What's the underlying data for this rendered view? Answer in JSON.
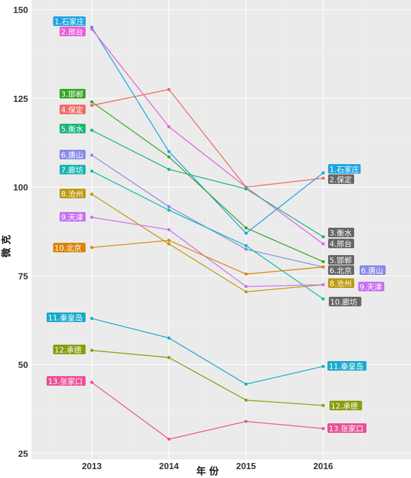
{
  "chart_data": {
    "type": "line",
    "x": [
      "2013",
      "2014",
      "2015",
      "2016"
    ],
    "ylabel": "微 克",
    "xlabel": "年 份",
    "ylim": [
      25,
      150
    ],
    "yticks": [
      "25",
      "50",
      "75",
      "100",
      "125",
      "150"
    ],
    "grid": true,
    "legend": "none (direct labels at both ends)",
    "series": [
      {
        "name": "1.石家庄",
        "color": "#1fa3e0",
        "values": [
          145,
          110,
          87,
          104
        ]
      },
      {
        "name": "2.邢台",
        "color": "#e75fda",
        "values": [
          144.5,
          117,
          100,
          84
        ]
      },
      {
        "name": "3.邯郸",
        "color": "#35a623",
        "values": [
          124,
          108.5,
          88.5,
          79
        ]
      },
      {
        "name": "4.保定",
        "color": "#ed6a5f",
        "values": [
          123,
          127.5,
          100,
          102.5
        ]
      },
      {
        "name": "5.衡水",
        "color": "#13b77a",
        "values": [
          116,
          105,
          99.5,
          86
        ]
      },
      {
        "name": "6.唐山",
        "color": "#8a8ae8",
        "values": [
          109,
          94.5,
          82.5,
          77.5
        ]
      },
      {
        "name": "7.廊坊",
        "color": "#12b8b0",
        "values": [
          104.5,
          93.5,
          83.5,
          68.5
        ]
      },
      {
        "name": "8.沧州",
        "color": "#b99a0c",
        "values": [
          98,
          84,
          70.5,
          72.5
        ]
      },
      {
        "name": "9.天津",
        "color": "#c971f0",
        "values": [
          91.5,
          88,
          72,
          72.5
        ]
      },
      {
        "name": "10.北京",
        "color": "#d9860b",
        "values": [
          83,
          85,
          75.5,
          77.5
        ]
      },
      {
        "name": "11.秦皇岛",
        "color": "#19aacb",
        "values": [
          63,
          57.5,
          44.5,
          49.5
        ]
      },
      {
        "name": "12.承德",
        "color": "#8a9c0e",
        "values": [
          54,
          52,
          40,
          38.5
        ]
      },
      {
        "name": "13.张家口",
        "color": "#ea4f96",
        "values": [
          45,
          29,
          34,
          32
        ]
      }
    ],
    "start_labels": [
      "1.石家庄",
      "2.邢台",
      "3.邯郸",
      "4.保定",
      "5.衡水",
      "6.唐山",
      "7.廊坊",
      "8.沧州",
      "9.天津",
      "10.北京",
      "11.秦皇岛",
      "12.承德",
      "13.张家口"
    ],
    "end_labels": [
      "1.石家庄",
      "2.保定",
      "3.衡水",
      "4.邢台",
      "5.邯郸",
      "6.北京",
      "6.唐山",
      "8.沧州",
      "9.天津",
      "10.廊坊",
      "11.秦皇岛",
      "12.承德",
      "13.张家口"
    ]
  }
}
